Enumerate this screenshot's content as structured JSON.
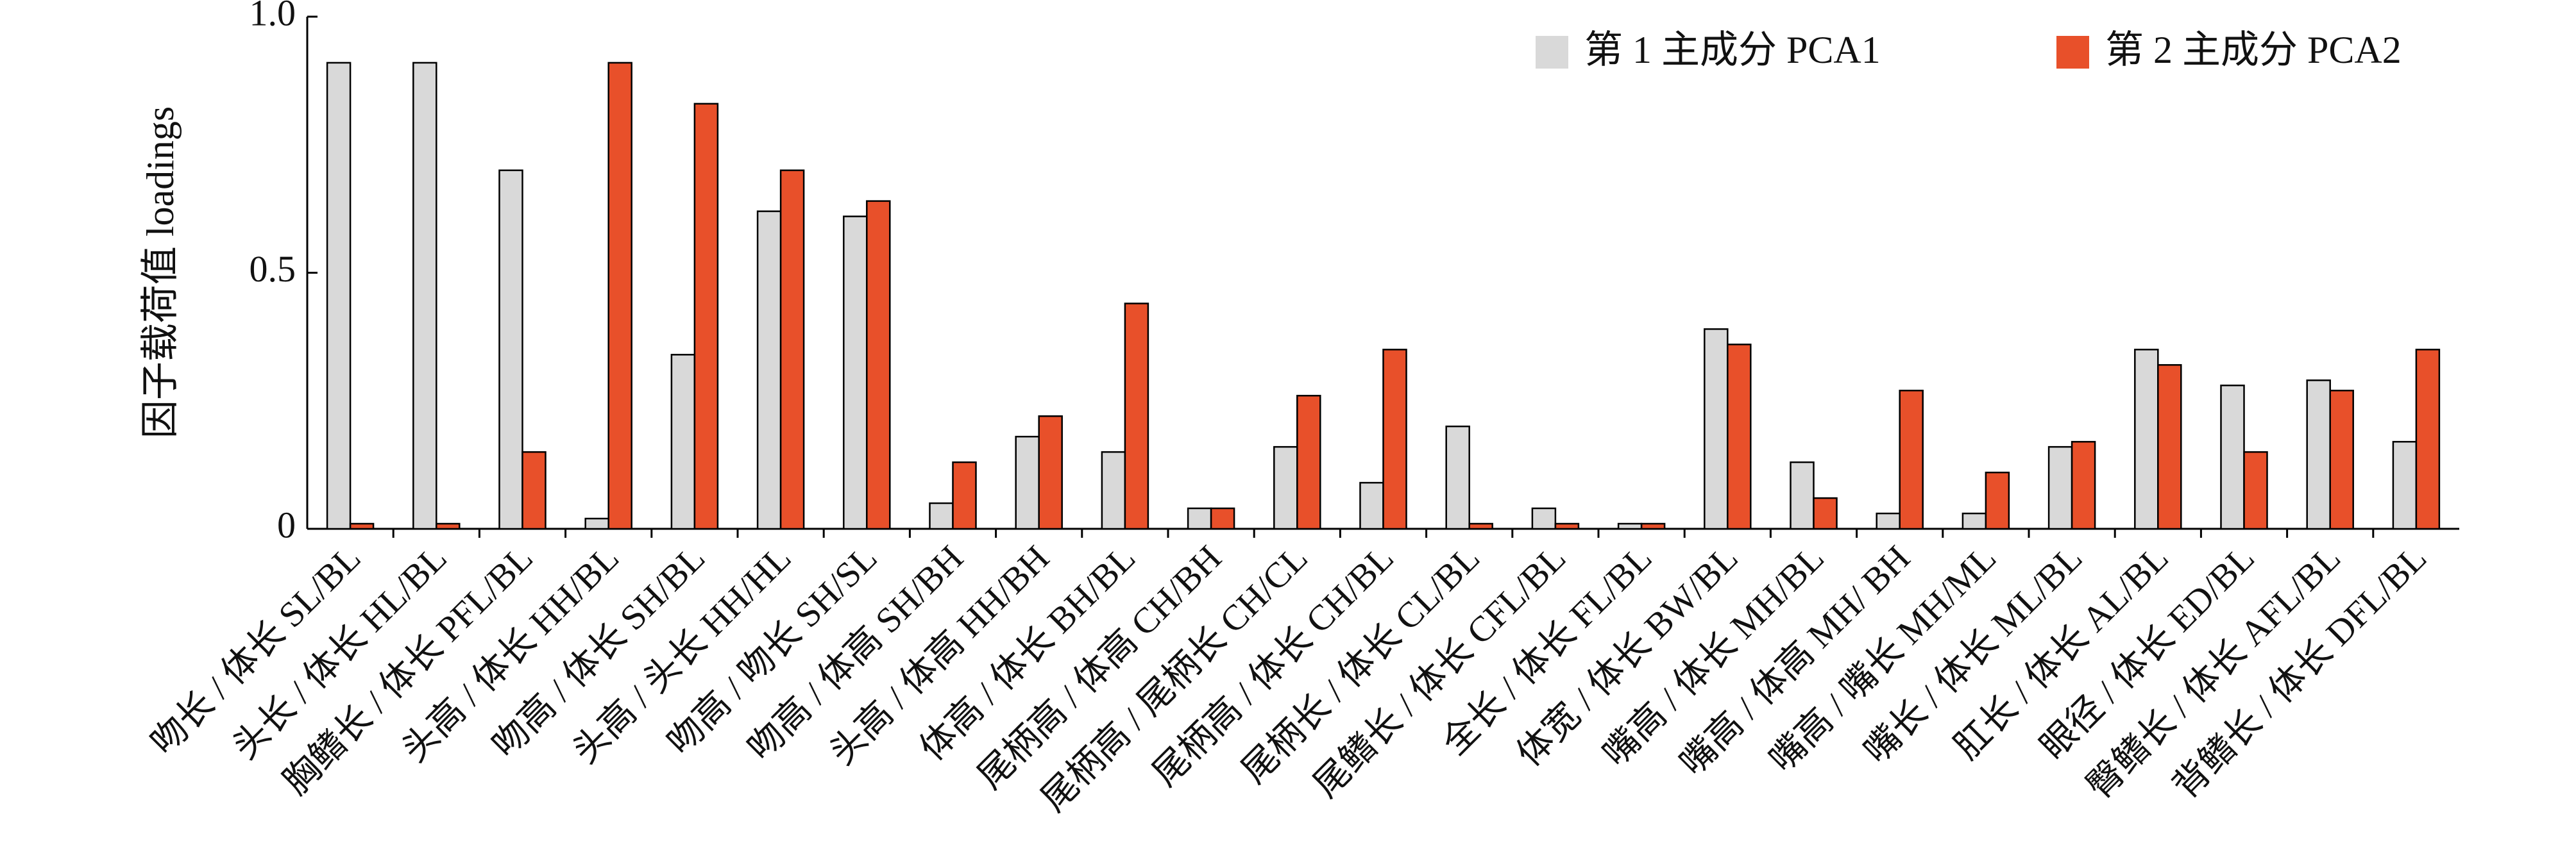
{
  "chart_data": {
    "type": "bar",
    "y_label": "因子载荷值 loadings",
    "categories": [
      "吻长 / 体长 SL/BL",
      "头长 / 体长 HL/BL",
      "胸鳍长 / 体长 PFL/BL",
      "头高 / 体长 HH/BL",
      "吻高 / 体长 SH/BL",
      "头高 / 头长 HH/HL",
      "吻高 / 吻长 SH/SL",
      "吻高 / 体高 SH/BH",
      "头高 / 体高 HH/BH",
      "体高 / 体长 BH/BL",
      "尾柄高 / 体高 CH/BH",
      "尾柄高 / 尾柄长 CH/CL",
      "尾柄高 / 体长 CH/BL",
      "尾柄长 / 体长 CL/BL",
      "尾鳍长 / 体长 CFL/BL",
      "全长 / 体长 FL/BL",
      "体宽 / 体长 BW/BL",
      "嘴高 / 体长 MH/BL",
      "嘴高 / 体高 MH/ BH",
      "嘴高 / 嘴长 MH/ML",
      "嘴长 / 体长 ML/BL",
      "肛长 / 体长 AL/BL",
      "眼径 / 体长 ED/BL",
      "臀鳍长 / 体长 AFL/BL",
      "背鳍长 / 体长 DFL/BL"
    ],
    "series": [
      {
        "name": "第 1 主成分 PCA1",
        "color": "#d9d9d9",
        "values": [
          0.91,
          0.91,
          0.7,
          0.02,
          0.34,
          0.62,
          0.61,
          0.05,
          0.18,
          0.15,
          0.04,
          0.16,
          0.09,
          0.2,
          0.04,
          0.01,
          0.39,
          0.13,
          0.03,
          0.03,
          0.16,
          0.35,
          0.28,
          0.29,
          0.17
        ]
      },
      {
        "name": "第 2 主成分 PCA2",
        "color": "#e8502a",
        "values": [
          0.01,
          0.01,
          0.15,
          0.91,
          0.83,
          0.7,
          0.64,
          0.13,
          0.22,
          0.44,
          0.04,
          0.26,
          0.35,
          0.01,
          0.01,
          0.01,
          0.36,
          0.06,
          0.27,
          0.11,
          0.17,
          0.32,
          0.15,
          0.27,
          0.35
        ]
      }
    ],
    "ylim": [
      0,
      1.0
    ],
    "yticks": [
      0,
      0.5,
      {
        "value": 1,
        "label": "1.0"
      }
    ],
    "legend": "top-right"
  }
}
